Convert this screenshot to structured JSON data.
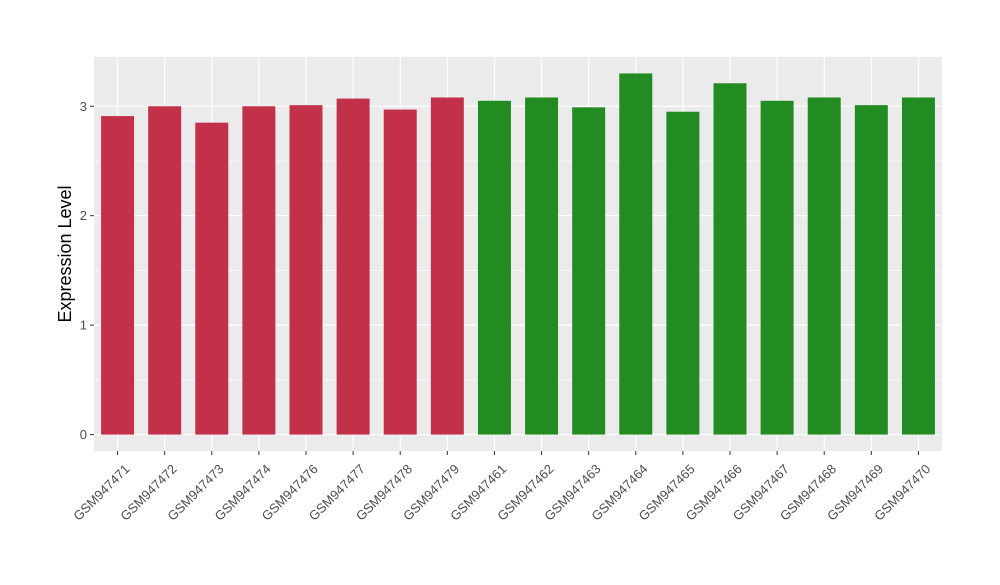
{
  "chart_data": {
    "type": "bar",
    "categories": [
      "GSM947471",
      "GSM947472",
      "GSM947473",
      "GSM947474",
      "GSM947476",
      "GSM947477",
      "GSM947478",
      "GSM947479",
      "GSM947461",
      "GSM947462",
      "GSM947463",
      "GSM947464",
      "GSM947465",
      "GSM947466",
      "GSM947467",
      "GSM947468",
      "GSM947469",
      "GSM947470"
    ],
    "values": [
      2.91,
      3.0,
      2.85,
      3.0,
      3.01,
      3.07,
      2.97,
      3.08,
      3.05,
      3.08,
      2.99,
      3.3,
      2.95,
      3.21,
      3.05,
      3.08,
      3.01,
      3.08
    ],
    "group_colors": [
      "#c3304a",
      "#c3304a",
      "#c3304a",
      "#c3304a",
      "#c3304a",
      "#c3304a",
      "#c3304a",
      "#c3304a",
      "#228b22",
      "#228b22",
      "#228b22",
      "#228b22",
      "#228b22",
      "#228b22",
      "#228b22",
      "#228b22",
      "#228b22",
      "#228b22"
    ],
    "title": "",
    "xlabel": "",
    "ylabel": "Expression Level",
    "ylim": [
      -0.15,
      3.45
    ],
    "yticks": [
      0,
      1,
      2,
      3
    ],
    "ytick_labels": [
      "0",
      "1",
      "2",
      "3"
    ],
    "grid": true,
    "panel_background": "#ebebeb",
    "grid_color": "#ffffff",
    "legend": "none"
  }
}
